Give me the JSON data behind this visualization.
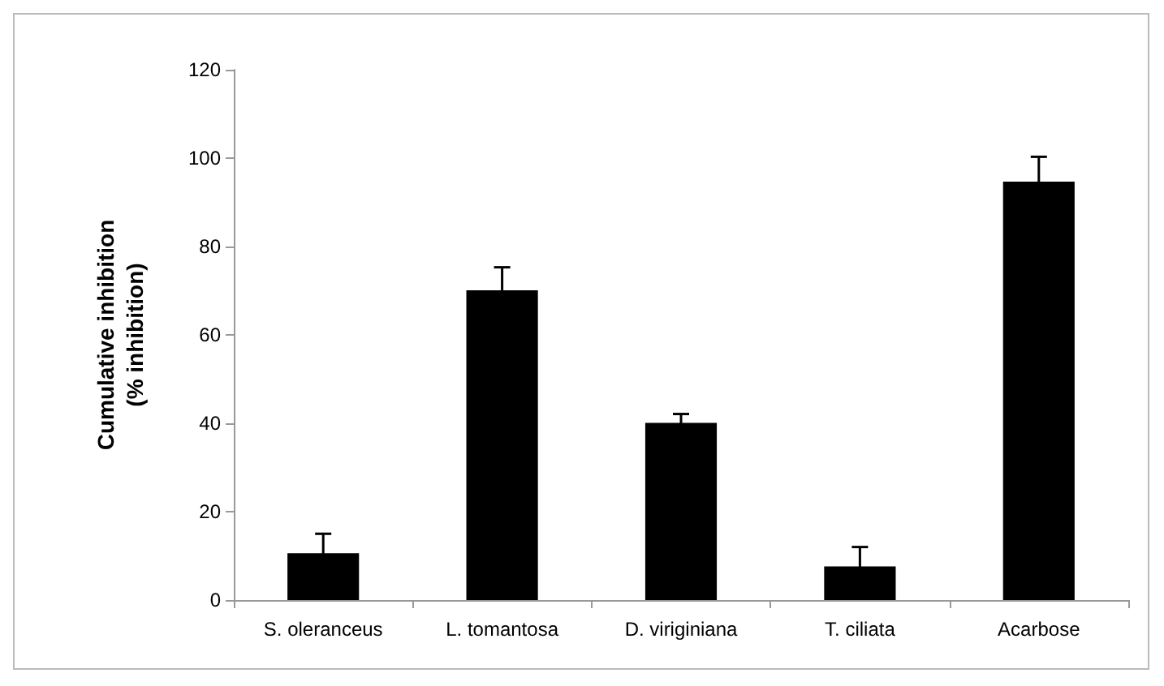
{
  "chart_data": {
    "type": "bar",
    "ylabel": "Cumulative inhibition\n(% inhibition)",
    "categories": [
      "S. oleranceus",
      "L. tomantosa",
      "D. viriginiana",
      "T. ciliata",
      "Acarbose"
    ],
    "values": [
      10.6,
      70.1,
      40.1,
      7.6,
      94.7
    ],
    "errors": [
      4.4,
      5.2,
      2,
      4.4,
      5.6
    ],
    "color": "#000000",
    "ylim": [
      0,
      120
    ],
    "yticks": [
      0,
      20,
      40,
      60,
      80,
      100,
      120
    ],
    "grid": false
  }
}
